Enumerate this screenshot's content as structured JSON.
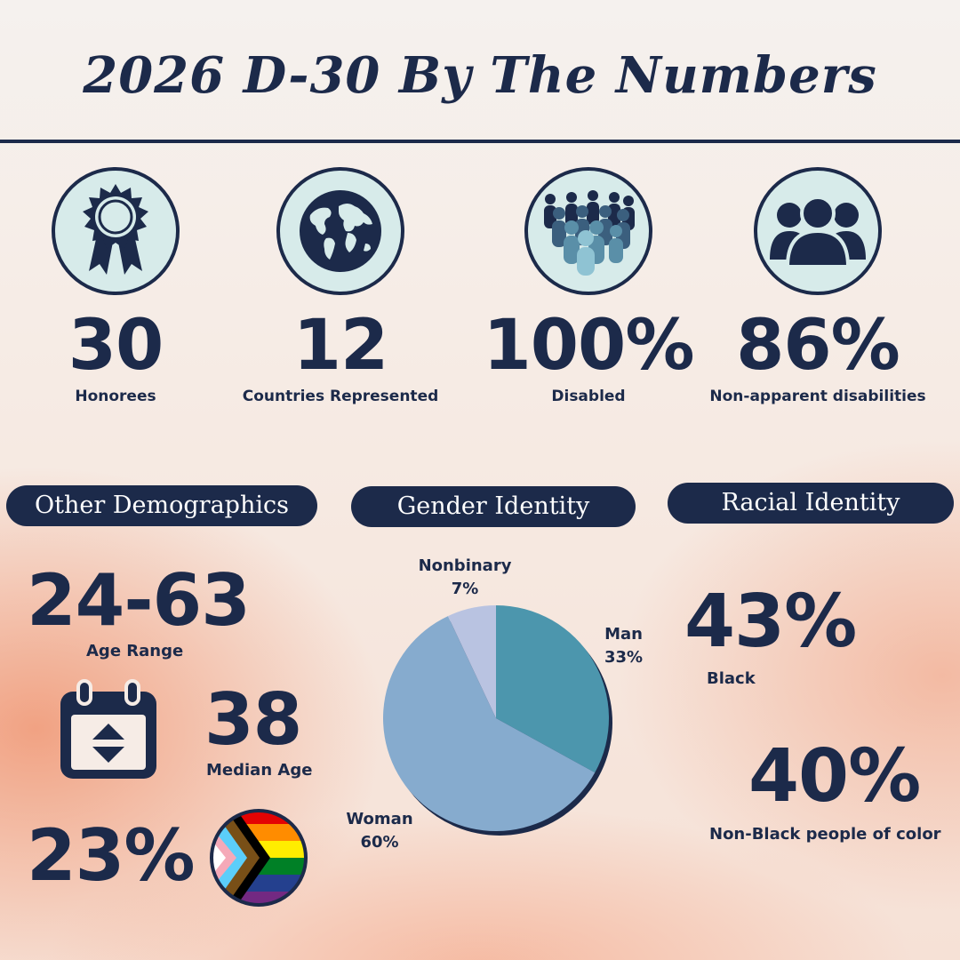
{
  "title": "2026 D-30 By The Numbers",
  "stats": [
    {
      "value": "30",
      "label": "Honorees",
      "icon": "award-ribbon-icon"
    },
    {
      "value": "12",
      "label": "Countries Represented",
      "icon": "globe-icon"
    },
    {
      "value": "100%",
      "label": "Disabled",
      "icon": "crowd-icon"
    },
    {
      "value": "86%",
      "label": "Non-apparent disabilities",
      "icon": "people-group-icon"
    }
  ],
  "other_demographics": {
    "heading": "Other Demographics",
    "age_range": {
      "value": "24-63",
      "label": "Age Range"
    },
    "median_age": {
      "value": "38",
      "label": "Median Age",
      "icon": "calendar-icon"
    },
    "lgbtq": {
      "value": "23%",
      "icon": "progress-pride-flag-icon"
    }
  },
  "gender_identity": {
    "heading": "Gender Identity"
  },
  "racial_identity": {
    "heading": "Racial Identity",
    "black": {
      "value": "43%",
      "label": "Black"
    },
    "non_black_poc": {
      "value": "40%",
      "label": "Non-Black people of color"
    }
  },
  "colors": {
    "navy": "#1c2a4a",
    "teal": "#4c96ad",
    "light_blue": "#86abce",
    "lavender": "#b9c3e1",
    "circle_fill": "#d7ebea"
  },
  "chart_data": {
    "type": "pie",
    "title": "Gender Identity",
    "slices": [
      {
        "name": "Man",
        "value": 33,
        "label": "33%",
        "color": "#4c96ad"
      },
      {
        "name": "Woman",
        "value": 60,
        "label": "60%",
        "color": "#86abce"
      },
      {
        "name": "Nonbinary",
        "value": 7,
        "label": "7%",
        "color": "#b9c3e1"
      }
    ]
  }
}
